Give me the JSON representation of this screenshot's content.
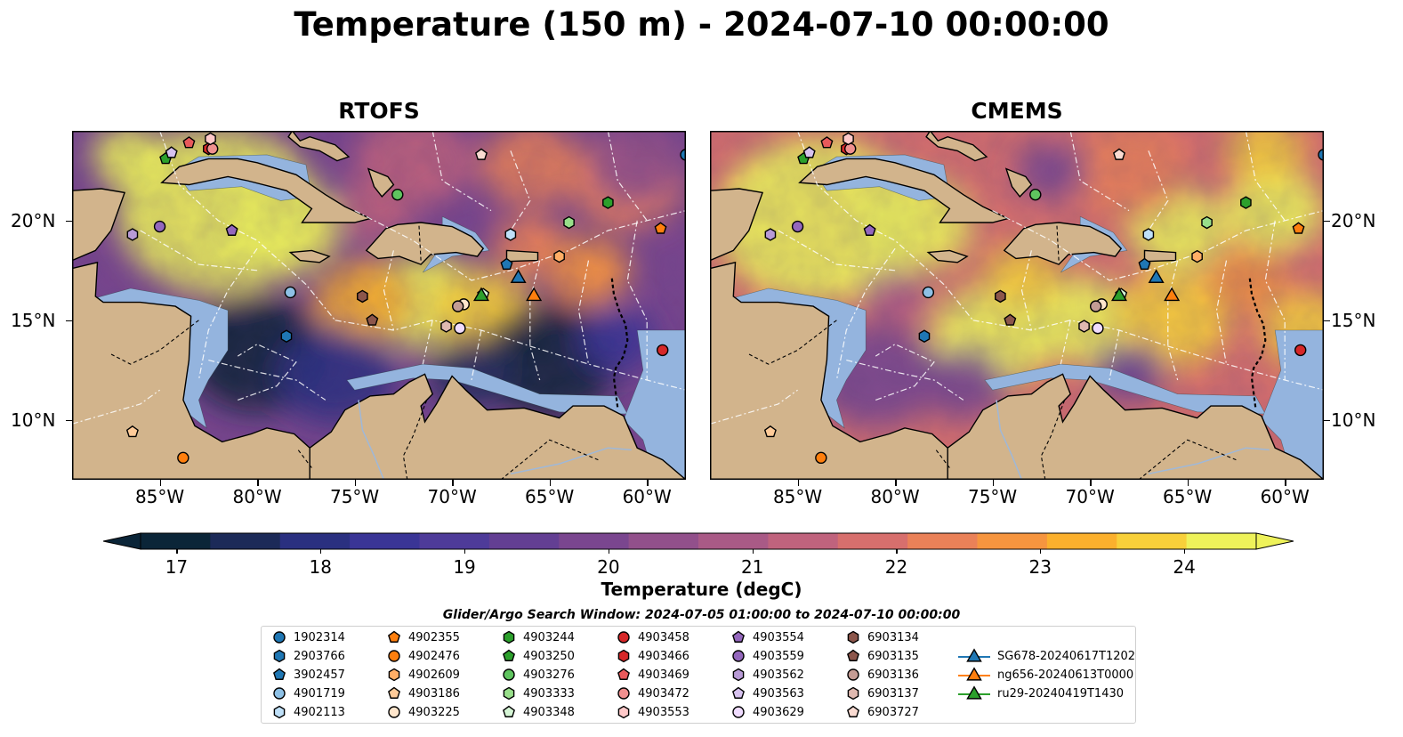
{
  "title": "Temperature (150 m) - 2024-07-10 00:00:00",
  "panels": [
    {
      "title": "RTOFS",
      "style": "cool"
    },
    {
      "title": "CMEMS",
      "style": "warm"
    }
  ],
  "lon_ticks": [
    "85°W",
    "80°W",
    "75°W",
    "70°W",
    "65°W",
    "60°W"
  ],
  "lat_ticks": [
    "20°N",
    "15°N",
    "10°N"
  ],
  "extent": {
    "lon_min": -89.5,
    "lon_max": -58.0,
    "lat_min": 7.0,
    "lat_max": 24.5
  },
  "colorbar": {
    "title": "Temperature (degC)",
    "ticks": [
      "17",
      "18",
      "19",
      "20",
      "21",
      "22",
      "23",
      "24"
    ],
    "min": 16.75,
    "max": 24.5,
    "step": 0.5,
    "colors": [
      "#0b2538",
      "#1c2a58",
      "#2a3080",
      "#3a3596",
      "#4e3b99",
      "#633f93",
      "#7a468f",
      "#92508b",
      "#a95a86",
      "#c0637d",
      "#d76f6d",
      "#ea8158",
      "#f6953f",
      "#fbb02d",
      "#f8d03a",
      "#eef25a"
    ]
  },
  "search_window": "Glider/Argo Search Window: 2024-07-05 01:00:00 to 2024-07-10 00:00:00",
  "legend": [
    {
      "label": "1902314",
      "marker": "circle",
      "color": "#1f77b4",
      "lon": -58.0,
      "lat": 23.3
    },
    {
      "label": "2903766",
      "marker": "hexagon",
      "color": "#1f77b4",
      "lon": -78.5,
      "lat": 14.2
    },
    {
      "label": "3902457",
      "marker": "pentagon",
      "color": "#1f77b4",
      "lon": -67.2,
      "lat": 17.8
    },
    {
      "label": "4901719",
      "marker": "circle",
      "color": "#8ec1e6",
      "lon": -78.3,
      "lat": 16.4
    },
    {
      "label": "4902113",
      "marker": "hexagon",
      "color": "#bfe0f8",
      "lon": -67.0,
      "lat": 19.3
    },
    {
      "label": "4902355",
      "marker": "pentagon",
      "color": "#ff7f0e",
      "lon": -59.3,
      "lat": 19.6
    },
    {
      "label": "4902476",
      "marker": "circle",
      "color": "#ff7f0e",
      "lon": -83.8,
      "lat": 8.1
    },
    {
      "label": "4902609",
      "marker": "hexagon",
      "color": "#ffae66",
      "lon": -64.5,
      "lat": 18.2
    },
    {
      "label": "4903186",
      "marker": "pentagon",
      "color": "#ffcb99",
      "lon": -86.4,
      "lat": 9.4
    },
    {
      "label": "4903225",
      "marker": "circle",
      "color": "#ffe6cc",
      "lon": -69.4,
      "lat": 15.8
    },
    {
      "label": "4903244",
      "marker": "hexagon",
      "color": "#2ca02c",
      "lon": -62.0,
      "lat": 20.9
    },
    {
      "label": "4903250",
      "marker": "pentagon",
      "color": "#2ca02c",
      "lon": -84.7,
      "lat": 23.1
    },
    {
      "label": "4903276",
      "marker": "circle",
      "color": "#5fc45f",
      "lon": -72.8,
      "lat": 21.3
    },
    {
      "label": "4903333",
      "marker": "hexagon",
      "color": "#98df8a",
      "lon": -64.0,
      "lat": 19.9
    },
    {
      "label": "4903348",
      "marker": "pentagon",
      "color": "#d5f5d5",
      "lon": -68.4,
      "lat": 16.3
    },
    {
      "label": "4903458",
      "marker": "circle",
      "color": "#d62728",
      "lon": -59.2,
      "lat": 13.5
    },
    {
      "label": "4903466",
      "marker": "hexagon",
      "color": "#d62728",
      "lon": -82.5,
      "lat": 23.6
    },
    {
      "label": "4903469",
      "marker": "pentagon",
      "color": "#e8595b",
      "lon": -83.5,
      "lat": 23.9
    },
    {
      "label": "4903472",
      "marker": "circle",
      "color": "#f0908f",
      "lon": -82.3,
      "lat": 23.6
    },
    {
      "label": "4903553",
      "marker": "hexagon",
      "color": "#ffc9c9",
      "lon": -82.4,
      "lat": 24.1
    },
    {
      "label": "4903554",
      "marker": "pentagon",
      "color": "#9467bd",
      "lon": -81.3,
      "lat": 19.5
    },
    {
      "label": "4903559",
      "marker": "circle",
      "color": "#9467bd",
      "lon": -85.0,
      "lat": 19.7
    },
    {
      "label": "4903562",
      "marker": "hexagon",
      "color": "#b89ad6",
      "lon": -86.4,
      "lat": 19.3
    },
    {
      "label": "4903563",
      "marker": "pentagon",
      "color": "#d7c2ef",
      "lon": -84.4,
      "lat": 23.4
    },
    {
      "label": "4903629",
      "marker": "circle",
      "color": "#f0dcff",
      "lon": -69.6,
      "lat": 14.6
    },
    {
      "label": "6903134",
      "marker": "hexagon",
      "color": "#8c564b",
      "lon": -74.6,
      "lat": 16.2
    },
    {
      "label": "6903135",
      "marker": "pentagon",
      "color": "#8c564b",
      "lon": -74.1,
      "lat": 15.0
    },
    {
      "label": "6903136",
      "marker": "circle",
      "color": "#c49c94",
      "lon": -69.7,
      "lat": 15.7
    },
    {
      "label": "6903137",
      "marker": "hexagon",
      "color": "#dfb9b0",
      "lon": -70.3,
      "lat": 14.7
    },
    {
      "label": "6903727",
      "marker": "pentagon",
      "color": "#fadbd2",
      "lon": -68.5,
      "lat": 23.3
    },
    {
      "label": "SG678-20240617T1202",
      "marker": "triangle",
      "color": "#1f77b4",
      "lon": -66.6,
      "lat": 17.1
    },
    {
      "label": "ng656-20240613T0000",
      "marker": "triangle",
      "color": "#ff7f0e",
      "lon": -65.8,
      "lat": 16.2
    },
    {
      "label": "ru29-20240419T1430",
      "marker": "triangle",
      "color": "#2ca02c",
      "lon": -68.5,
      "lat": 16.2
    }
  ]
}
